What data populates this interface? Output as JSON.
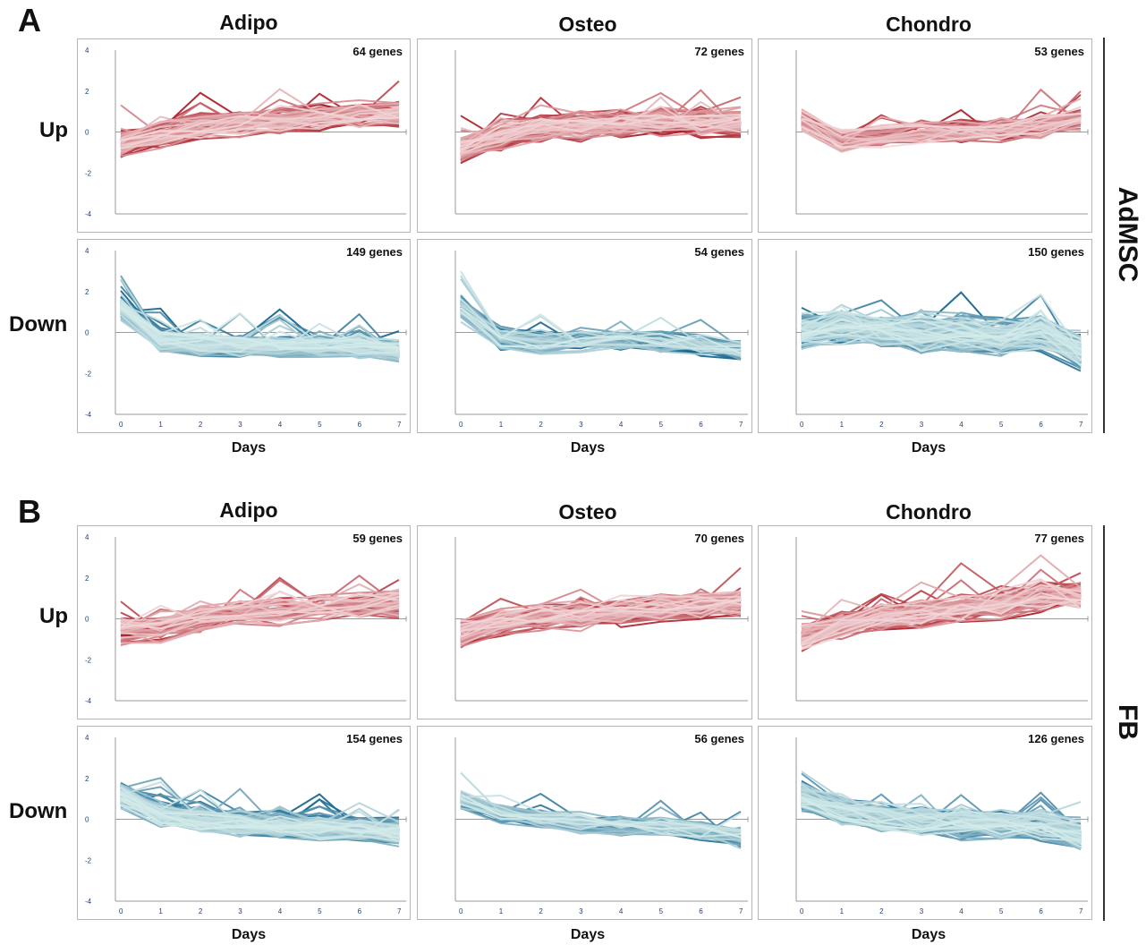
{
  "panels": [
    {
      "letter": "A",
      "side_label": "AdMSC",
      "columns": [
        "Adipo",
        "Osteo",
        "Chondro"
      ],
      "rows": [
        "Up",
        "Down"
      ],
      "xlabel": "Days"
    },
    {
      "letter": "B",
      "side_label": "FB",
      "columns": [
        "Adipo",
        "Osteo",
        "Chondro"
      ],
      "rows": [
        "Up",
        "Down"
      ],
      "xlabel": "Days"
    }
  ],
  "colors": {
    "up_dark": "#a8141f",
    "up_light": "#f2d6d8",
    "down_dark": "#0b5e8a",
    "down_light": "#d4ebea",
    "axis": "#9a9a9a",
    "tick_text": "#1f3d7a"
  },
  "chart_data": [
    {
      "id": "A-up-adipo",
      "type": "line",
      "annotation": "64 genes",
      "direction": "up",
      "n_lines": 64,
      "x": [
        0,
        1,
        2,
        3,
        4,
        5,
        6,
        7
      ],
      "ylim": [
        -4,
        4
      ],
      "yticks": [
        4,
        2,
        0,
        -2,
        -4
      ],
      "show_xticks": false,
      "mean_profile": [
        -0.6,
        -0.1,
        0.3,
        0.4,
        0.5,
        0.7,
        0.8,
        0.9
      ],
      "spread": 0.55
    },
    {
      "id": "A-up-osteo",
      "type": "line",
      "annotation": "72 genes",
      "direction": "up",
      "n_lines": 72,
      "x": [
        0,
        1,
        2,
        3,
        4,
        5,
        6,
        7
      ],
      "ylim": [
        -4,
        4
      ],
      "yticks": [],
      "show_xticks": false,
      "mean_profile": [
        -0.8,
        -0.2,
        0.2,
        0.3,
        0.4,
        0.5,
        0.4,
        0.5
      ],
      "spread": 0.6
    },
    {
      "id": "A-up-chondro",
      "type": "line",
      "annotation": "53 genes",
      "direction": "up",
      "n_lines": 53,
      "x": [
        0,
        1,
        2,
        3,
        4,
        5,
        6,
        7
      ],
      "ylim": [
        -4,
        4
      ],
      "yticks": [],
      "show_xticks": false,
      "mean_profile": [
        0.6,
        -0.4,
        -0.2,
        0.0,
        0.0,
        0.1,
        0.3,
        0.7
      ],
      "spread": 0.45
    },
    {
      "id": "A-down-adipo",
      "type": "line",
      "annotation": "149 genes",
      "direction": "down",
      "n_lines": 149,
      "x": [
        0,
        1,
        2,
        3,
        4,
        5,
        6,
        7
      ],
      "ylim": [
        -4,
        4
      ],
      "yticks": [
        4,
        2,
        0,
        -2,
        -4
      ],
      "show_xticks": true,
      "mean_profile": [
        1.2,
        -0.4,
        -0.6,
        -0.7,
        -0.7,
        -0.7,
        -0.7,
        -0.9
      ],
      "spread": 0.45
    },
    {
      "id": "A-down-osteo",
      "type": "line",
      "annotation": "54 genes",
      "direction": "down",
      "n_lines": 54,
      "x": [
        0,
        1,
        2,
        3,
        4,
        5,
        6,
        7
      ],
      "ylim": [
        -4,
        4
      ],
      "yticks": [],
      "show_xticks": true,
      "mean_profile": [
        1.2,
        -0.3,
        -0.5,
        -0.4,
        -0.4,
        -0.5,
        -0.6,
        -0.9
      ],
      "spread": 0.5
    },
    {
      "id": "A-down-chondro",
      "type": "line",
      "annotation": "150 genes",
      "direction": "down",
      "n_lines": 150,
      "x": [
        0,
        1,
        2,
        3,
        4,
        5,
        6,
        7
      ],
      "ylim": [
        -4,
        4
      ],
      "yticks": [],
      "show_xticks": true,
      "mean_profile": [
        0.0,
        0.3,
        0.1,
        -0.1,
        -0.1,
        -0.2,
        0.0,
        -1.0
      ],
      "spread": 0.7
    },
    {
      "id": "B-up-adipo",
      "type": "line",
      "annotation": "59 genes",
      "direction": "up",
      "n_lines": 59,
      "x": [
        0,
        1,
        2,
        3,
        4,
        5,
        6,
        7
      ],
      "ylim": [
        -4,
        4
      ],
      "yticks": [
        4,
        2,
        0,
        -2,
        -4
      ],
      "show_xticks": false,
      "mean_profile": [
        -0.6,
        -0.5,
        0.0,
        0.3,
        0.4,
        0.5,
        0.6,
        0.7
      ],
      "spread": 0.55
    },
    {
      "id": "B-up-osteo",
      "type": "line",
      "annotation": "70 genes",
      "direction": "up",
      "n_lines": 70,
      "x": [
        0,
        1,
        2,
        3,
        4,
        5,
        6,
        7
      ],
      "ylim": [
        -4,
        4
      ],
      "yticks": [],
      "show_xticks": false,
      "mean_profile": [
        -0.7,
        -0.2,
        0.1,
        0.1,
        0.3,
        0.5,
        0.6,
        0.8
      ],
      "spread": 0.6
    },
    {
      "id": "B-up-chondro",
      "type": "line",
      "annotation": "77 genes",
      "direction": "up",
      "n_lines": 77,
      "x": [
        0,
        1,
        2,
        3,
        4,
        5,
        6,
        7
      ],
      "ylim": [
        -4,
        4
      ],
      "yticks": [],
      "show_xticks": false,
      "mean_profile": [
        -0.9,
        -0.3,
        0.1,
        0.3,
        0.5,
        0.7,
        1.1,
        1.2
      ],
      "spread": 0.6
    },
    {
      "id": "B-down-adipo",
      "type": "line",
      "annotation": "154 genes",
      "direction": "down",
      "n_lines": 154,
      "x": [
        0,
        1,
        2,
        3,
        4,
        5,
        6,
        7
      ],
      "ylim": [
        -4,
        4
      ],
      "yticks": [
        4,
        2,
        0,
        -2,
        -4
      ],
      "show_xticks": true,
      "mean_profile": [
        1.2,
        0.3,
        0.0,
        -0.2,
        -0.3,
        -0.4,
        -0.4,
        -0.6
      ],
      "spread": 0.5
    },
    {
      "id": "B-down-osteo",
      "type": "line",
      "annotation": "56 genes",
      "direction": "down",
      "n_lines": 56,
      "x": [
        0,
        1,
        2,
        3,
        4,
        5,
        6,
        7
      ],
      "ylim": [
        -4,
        4
      ],
      "yticks": [],
      "show_xticks": true,
      "mean_profile": [
        0.9,
        0.3,
        0.0,
        -0.2,
        -0.3,
        -0.4,
        -0.6,
        -0.9
      ],
      "spread": 0.4
    },
    {
      "id": "B-down-chondro",
      "type": "line",
      "annotation": "126 genes",
      "direction": "down",
      "n_lines": 126,
      "x": [
        0,
        1,
        2,
        3,
        4,
        5,
        6,
        7
      ],
      "ylim": [
        -4,
        4
      ],
      "yticks": [],
      "show_xticks": true,
      "mean_profile": [
        1.1,
        0.4,
        0.1,
        -0.1,
        -0.2,
        -0.3,
        -0.3,
        -0.8
      ],
      "spread": 0.6
    }
  ]
}
